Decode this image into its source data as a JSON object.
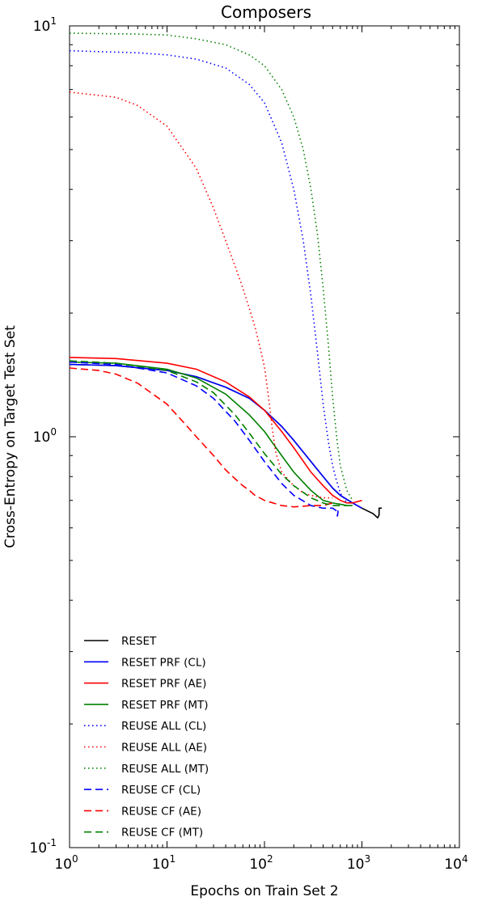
{
  "chart_data": {
    "type": "line",
    "title": "Composers",
    "xlabel": "Epochs on Train Set 2",
    "ylabel": "Cross-Entropy on Target Test Set",
    "xscale": "log",
    "yscale": "log",
    "xlim": [
      1,
      10000
    ],
    "ylim": [
      0.1,
      10
    ],
    "grid": false,
    "legend_position": "lower-left",
    "x_ticks": [
      {
        "value": 1,
        "base": "10",
        "exp": "0"
      },
      {
        "value": 10,
        "base": "10",
        "exp": "1"
      },
      {
        "value": 100,
        "base": "10",
        "exp": "2"
      },
      {
        "value": 1000,
        "base": "10",
        "exp": "3"
      },
      {
        "value": 10000,
        "base": "10",
        "exp": "4"
      }
    ],
    "y_ticks": [
      {
        "value": 0.1,
        "base": "10",
        "exp": "-1"
      },
      {
        "value": 1,
        "base": "10",
        "exp": "0"
      },
      {
        "value": 10,
        "base": "10",
        "exp": "1"
      }
    ],
    "series": [
      {
        "name": "RESET",
        "color": "#000000",
        "dash": "solid",
        "x": [
          1,
          3,
          10,
          20,
          40,
          70,
          100,
          150,
          200,
          300,
          400,
          500,
          600,
          800,
          1000,
          1300,
          1450,
          1500,
          1500,
          1600
        ],
        "y": [
          1.5,
          1.49,
          1.45,
          1.4,
          1.32,
          1.24,
          1.16,
          1.06,
          0.98,
          0.87,
          0.8,
          0.75,
          0.72,
          0.69,
          0.67,
          0.65,
          0.635,
          0.645,
          0.67,
          0.67
        ]
      },
      {
        "name": "RESET PRF (CL)",
        "color": "#0000ff",
        "dash": "solid",
        "x": [
          1,
          3,
          10,
          20,
          40,
          70,
          100,
          150,
          200,
          300,
          400,
          500,
          600,
          800,
          1000
        ],
        "y": [
          1.5,
          1.49,
          1.45,
          1.4,
          1.32,
          1.24,
          1.16,
          1.06,
          0.98,
          0.87,
          0.8,
          0.75,
          0.72,
          0.69,
          0.67
        ]
      },
      {
        "name": "RESET PRF (AE)",
        "color": "#ff0000",
        "dash": "solid",
        "x": [
          1,
          3,
          10,
          20,
          40,
          70,
          100,
          150,
          200,
          300,
          400,
          500,
          600,
          700,
          800,
          1000
        ],
        "y": [
          1.56,
          1.55,
          1.51,
          1.46,
          1.36,
          1.25,
          1.16,
          1.03,
          0.94,
          0.82,
          0.76,
          0.72,
          0.7,
          0.69,
          0.69,
          0.7
        ]
      },
      {
        "name": "RESET PRF (MT)",
        "color": "#008000",
        "dash": "solid",
        "x": [
          1,
          3,
          10,
          20,
          40,
          70,
          100,
          150,
          200,
          300,
          400,
          500,
          600,
          700,
          800
        ],
        "y": [
          1.52,
          1.51,
          1.46,
          1.39,
          1.27,
          1.13,
          1.03,
          0.9,
          0.82,
          0.74,
          0.7,
          0.69,
          0.685,
          0.68,
          0.68
        ]
      },
      {
        "name": "REUSE ALL (CL)",
        "color": "#0000ff",
        "dash": "dotted",
        "x": [
          1,
          5,
          10,
          20,
          40,
          70,
          100,
          150,
          200,
          250,
          300,
          350,
          400,
          450,
          500,
          550,
          600,
          700
        ],
        "y": [
          8.7,
          8.6,
          8.5,
          8.3,
          7.9,
          7.2,
          6.5,
          5.2,
          4.0,
          3.0,
          2.2,
          1.6,
          1.2,
          0.98,
          0.85,
          0.78,
          0.73,
          0.69
        ]
      },
      {
        "name": "REUSE ALL (AE)",
        "color": "#ff0000",
        "dash": "dotted",
        "x": [
          1,
          3,
          5,
          10,
          20,
          30,
          40,
          50,
          60,
          70,
          80,
          90,
          100,
          110,
          120,
          130,
          150,
          200,
          250,
          300,
          400,
          500
        ],
        "y": [
          6.9,
          6.7,
          6.4,
          5.7,
          4.5,
          3.6,
          3.0,
          2.6,
          2.3,
          2.05,
          1.85,
          1.65,
          1.48,
          1.25,
          1.05,
          0.92,
          0.82,
          0.76,
          0.73,
          0.72,
          0.71,
          0.71
        ]
      },
      {
        "name": "REUSE ALL (MT)",
        "color": "#008000",
        "dash": "dotted",
        "x": [
          1,
          5,
          10,
          20,
          40,
          70,
          100,
          150,
          200,
          250,
          300,
          350,
          400,
          450,
          500,
          550,
          600,
          700,
          800
        ],
        "y": [
          9.6,
          9.55,
          9.5,
          9.3,
          9.0,
          8.5,
          8.0,
          7.0,
          6.0,
          5.0,
          4.0,
          3.1,
          2.3,
          1.7,
          1.25,
          1.0,
          0.85,
          0.74,
          0.7
        ]
      },
      {
        "name": "REUSE CF (CL)",
        "color": "#0000ff",
        "dash": "dashed",
        "x": [
          1,
          3,
          10,
          20,
          30,
          50,
          70,
          100,
          150,
          200,
          300,
          400,
          500,
          550,
          560,
          570,
          600
        ],
        "y": [
          1.52,
          1.5,
          1.43,
          1.33,
          1.24,
          1.09,
          0.98,
          0.87,
          0.77,
          0.72,
          0.68,
          0.67,
          0.67,
          0.66,
          0.64,
          0.66,
          0.66
        ]
      },
      {
        "name": "REUSE CF (AE)",
        "color": "#ff0000",
        "dash": "dashed",
        "x": [
          1,
          2,
          3,
          5,
          10,
          15,
          20,
          30,
          40,
          50,
          60,
          70,
          80,
          100,
          150,
          200,
          300,
          400,
          500
        ],
        "y": [
          1.47,
          1.45,
          1.42,
          1.35,
          1.2,
          1.08,
          1.0,
          0.9,
          0.83,
          0.79,
          0.76,
          0.74,
          0.72,
          0.7,
          0.68,
          0.675,
          0.68,
          0.68,
          0.69
        ]
      },
      {
        "name": "REUSE CF (MT)",
        "color": "#008000",
        "dash": "dashed",
        "x": [
          1,
          3,
          10,
          20,
          30,
          50,
          70,
          100,
          150,
          200,
          300,
          400,
          500,
          600,
          700
        ],
        "y": [
          1.53,
          1.51,
          1.45,
          1.36,
          1.28,
          1.13,
          1.02,
          0.91,
          0.81,
          0.76,
          0.71,
          0.69,
          0.68,
          0.68,
          0.68
        ]
      }
    ]
  }
}
